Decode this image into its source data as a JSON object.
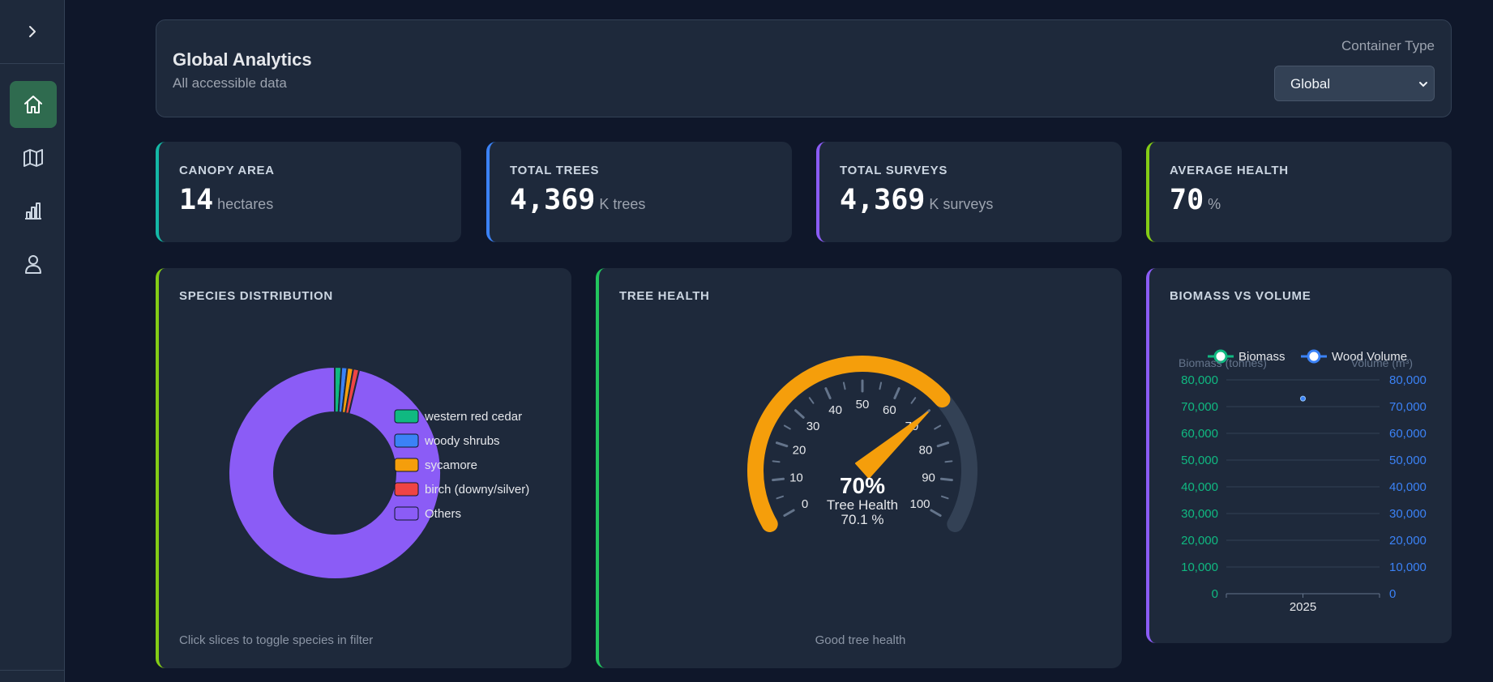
{
  "header": {
    "title": "Global Analytics",
    "subtitle": "All accessible data",
    "container_type_label": "Container Type",
    "container_type_value": "Global"
  },
  "sidebar": {
    "items": [
      {
        "icon": "home-icon",
        "active": true
      },
      {
        "icon": "map-icon",
        "active": false
      },
      {
        "icon": "bar-chart-icon",
        "active": false
      },
      {
        "icon": "user-icon",
        "active": false
      }
    ]
  },
  "stats": [
    {
      "label": "CANOPY AREA",
      "value": "14",
      "unit": "hectares",
      "accent": "#14b8a6"
    },
    {
      "label": "TOTAL TREES",
      "value": "4,369",
      "unit": "K trees",
      "accent": "#3b82f6"
    },
    {
      "label": "TOTAL SURVEYS",
      "value": "4,369",
      "unit": "K surveys",
      "accent": "#8b5cf6"
    },
    {
      "label": "AVERAGE HEALTH",
      "value": "70",
      "unit": "%",
      "accent": "#84cc16"
    }
  ],
  "species": {
    "title": "SPECIES DISTRIBUTION",
    "footer": "Click slices to toggle species in filter",
    "accent": "#84cc16"
  },
  "health": {
    "title": "TREE HEALTH",
    "footer": "Good tree health",
    "accent": "#22c55e",
    "value_label": "70%",
    "name": "Tree Health",
    "detail": "70.1 %",
    "gauge_color": "#f59e0b"
  },
  "biomass": {
    "title": "BIOMASS VS VOLUME",
    "accent": "#8b5cf6"
  },
  "chart_data": [
    {
      "type": "pie",
      "donut": true,
      "labels": [
        "western red cedar",
        "woody shrubs",
        "sycamore",
        "birch (downy/silver)",
        "Others"
      ],
      "values": [
        1.0,
        0.9,
        0.9,
        0.9,
        96.3
      ],
      "colors": [
        "#10b981",
        "#3b82f6",
        "#f59e0b",
        "#ef4444",
        "#8b5cf6"
      ],
      "legend": "right"
    },
    {
      "type": "gauge",
      "value": 70.1,
      "range": [
        0,
        100
      ],
      "ticks": [
        0,
        10,
        20,
        30,
        40,
        50,
        60,
        70,
        80,
        90,
        100
      ]
    },
    {
      "type": "line",
      "categories": [
        "2025"
      ],
      "series": [
        {
          "name": "Biomass",
          "values": [
            null
          ],
          "color": "#10b981",
          "axis": "left"
        },
        {
          "name": "Wood Volume",
          "values": [
            73000
          ],
          "color": "#3b82f6",
          "axis": "right"
        }
      ],
      "ylabel": "Biomass (tonnes)",
      "y2label": "Volume (m³)",
      "ylim": [
        0,
        80000
      ],
      "y2lim": [
        0,
        80000
      ],
      "yticks": [
        "0",
        "10,000",
        "20,000",
        "30,000",
        "40,000",
        "50,000",
        "60,000",
        "70,000",
        "80,000"
      ],
      "grid": true,
      "legend": "top"
    }
  ]
}
